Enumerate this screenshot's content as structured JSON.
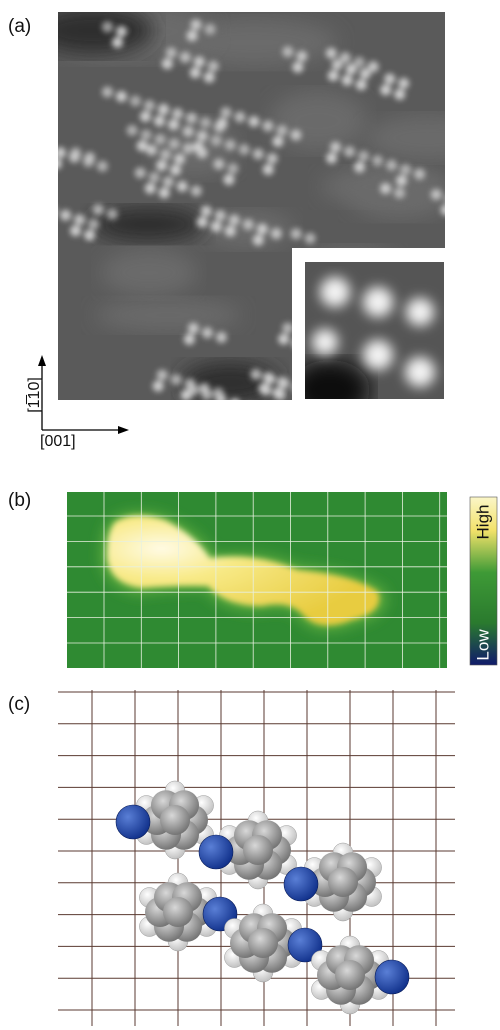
{
  "panels": {
    "a": {
      "label": "(a)",
      "axis_vertical": "[1̅10]",
      "axis_horizontal": "[001]"
    },
    "b": {
      "label": "(b)",
      "colorbar_high": "High",
      "colorbar_low": "Low"
    },
    "c": {
      "label": "(c)"
    }
  }
}
